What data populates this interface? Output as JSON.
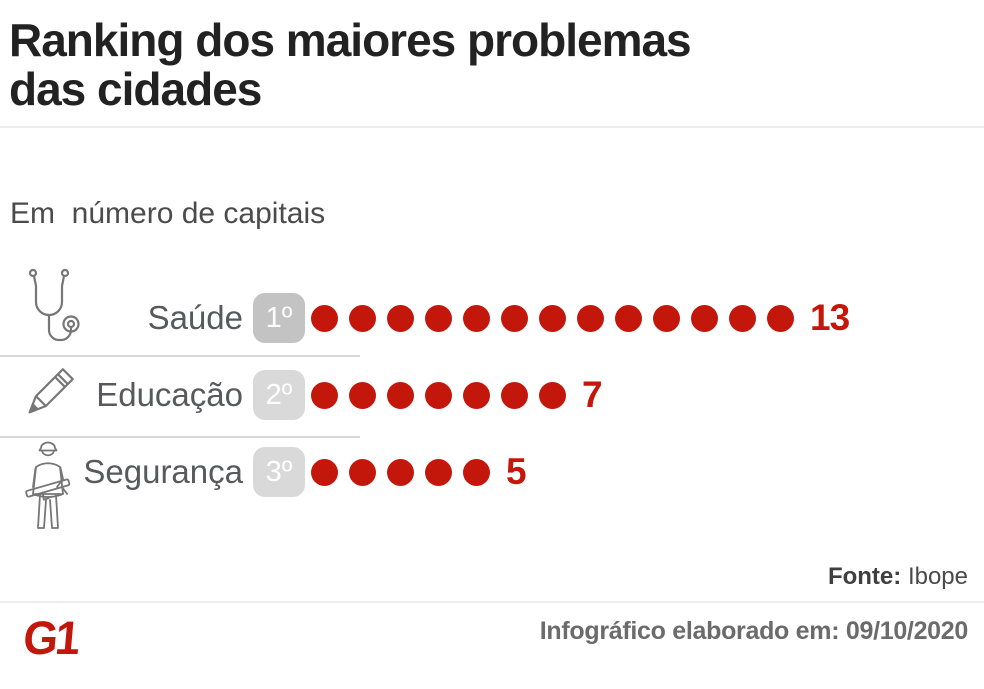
{
  "header": {
    "title_lines": [
      "Ranking dos maiores problemas",
      "das cidades"
    ]
  },
  "subtitle": "Em  número de capitais",
  "chart_data": {
    "type": "bar",
    "variant": "pictogram-dot-bars",
    "title": "Ranking dos maiores problemas das cidades",
    "subtitle": "Em número de capitais",
    "unit": "capitais",
    "categories": [
      "Saúde",
      "Educação",
      "Segurança"
    ],
    "values": [
      13,
      7,
      5
    ],
    "ranks": [
      "1º",
      "2º",
      "3º"
    ],
    "icons": [
      "stethoscope-icon",
      "pencil-icon",
      "security-guard-icon"
    ],
    "xlim": [
      0,
      13
    ],
    "grid": false,
    "legend": false,
    "dot_color": "#c4170c",
    "value_color": "#c4170c"
  },
  "ui": {
    "badge_colors": [
      "#c3c3c3",
      "#d9d9d9",
      "#d9d9d9"
    ],
    "badge_text_color": "#ffffff",
    "label_color": "#58595b",
    "icon_stroke_color": "#767676"
  },
  "footer": {
    "source_label": "Fonte:",
    "source_value": "Ibope",
    "logo_text": "G1",
    "logo_color": "#c4170c",
    "credit": "Infográfico elaborado em: 09/10/2020"
  }
}
